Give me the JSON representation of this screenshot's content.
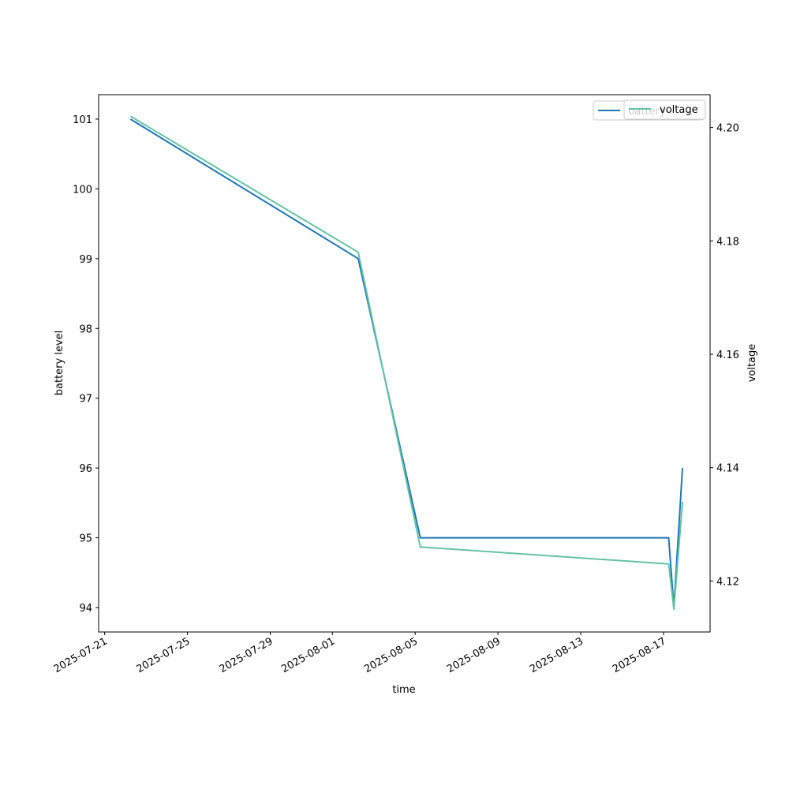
{
  "chart_data": {
    "type": "line",
    "xlabel": "time",
    "ylabel": "battery level",
    "y2label": "voltage",
    "x_ticks": [
      "2025-07-21",
      "2025-07-25",
      "2025-07-29",
      "2025-08-01",
      "2025-08-05",
      "2025-08-09",
      "2025-08-13",
      "2025-08-17"
    ],
    "xlim": [
      "2025-07-20T17:00",
      "2025-08-19T06:00"
    ],
    "y_ticks": [
      94,
      95,
      96,
      97,
      98,
      99,
      100,
      101
    ],
    "ylim": [
      93.65,
      101.35
    ],
    "y2_ticks": [
      "4.12",
      "4.14",
      "4.16",
      "4.18",
      "4.20"
    ],
    "y2lim": [
      4.111,
      4.2058
    ],
    "series": [
      {
        "name": "battery",
        "axis": "left",
        "color": "#1f77b4",
        "x": [
          "2025-07-22T06:00",
          "2025-08-02T06:00",
          "2025-08-05T06:00",
          "2025-08-17T06:00",
          "2025-08-17T12:00",
          "2025-08-17T22:00"
        ],
        "values": [
          101,
          99,
          95,
          95,
          94,
          96
        ]
      },
      {
        "name": "voltage",
        "axis": "right",
        "color": "#66c2a5",
        "x": [
          "2025-07-22T06:00",
          "2025-08-02T06:00",
          "2025-08-05T06:00",
          "2025-08-17T06:00",
          "2025-08-17T12:00",
          "2025-08-17T22:00"
        ],
        "values": [
          4.202,
          4.178,
          4.126,
          4.123,
          4.115,
          4.134
        ]
      }
    ],
    "legend_left": {
      "label": "battery",
      "placement": "upper-right"
    },
    "legend_right": {
      "label": "voltage",
      "placement": "upper-right"
    },
    "grid": false
  }
}
